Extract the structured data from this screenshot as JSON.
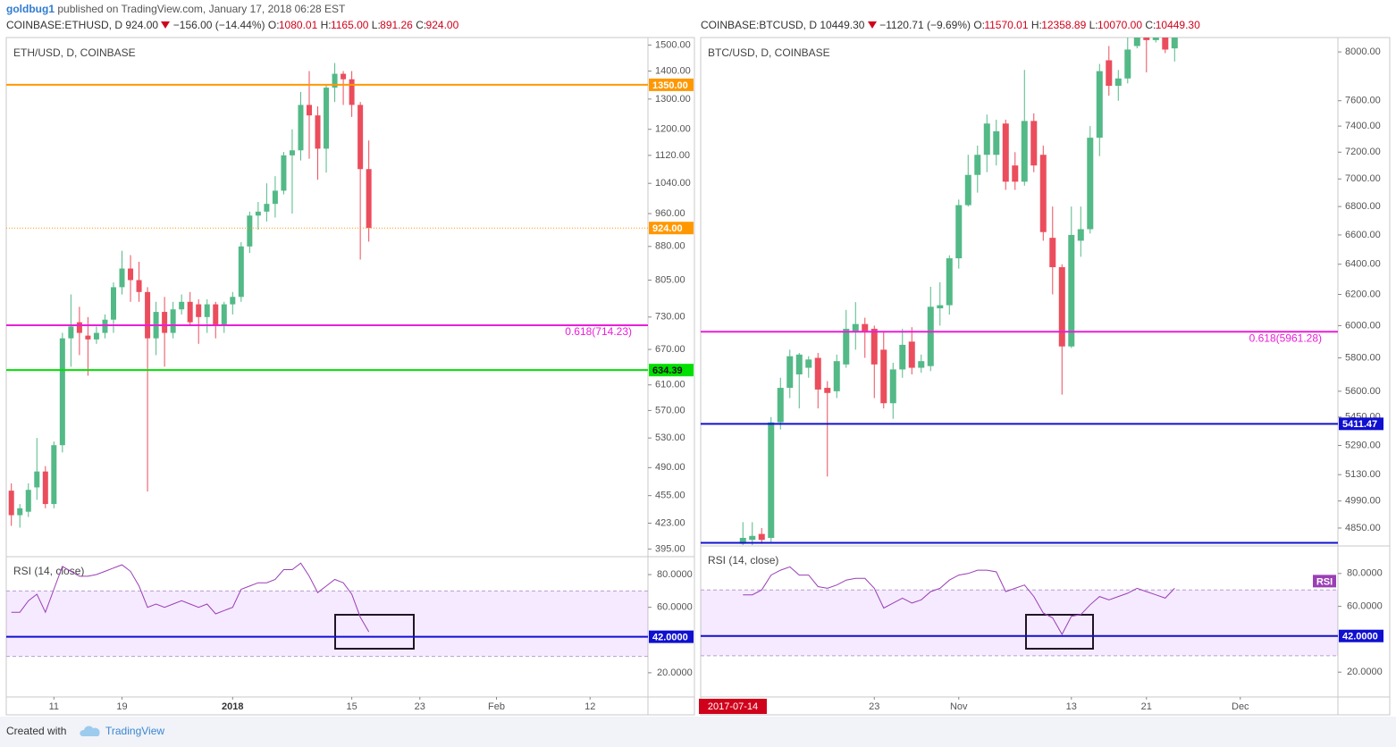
{
  "author": "goldbug1",
  "published": "published on TradingView.com, January 17, 2018 06:28 EST",
  "footer": {
    "created": "Created with",
    "brand": "TradingView"
  },
  "chart_data": [
    {
      "type": "candlestick",
      "header": {
        "symbol": "COINBASE:ETHUSD, D",
        "price": "924.00",
        "change": "−156.00 (−14.44%)",
        "ohlc": [
          {
            "label": "O:",
            "value": "1080.01"
          },
          {
            "label": "H:",
            "value": "1165.00"
          },
          {
            "label": "L:",
            "value": "891.26"
          },
          {
            "label": "C:",
            "value": "924.00"
          }
        ]
      },
      "title": "ETH/USD, D, COINBASE",
      "up_color": "#53b987",
      "down_color": "#eb4d5c",
      "log": true,
      "ylim": [
        388,
        1530
      ],
      "yticks": [
        {
          "value": 1500,
          "label": "1500.00"
        },
        {
          "value": 1400,
          "label": "1400.00"
        },
        {
          "value": 1300,
          "label": "1300.00"
        },
        {
          "value": 1200,
          "label": "1200.00"
        },
        {
          "value": 1120,
          "label": "1120.00"
        },
        {
          "value": 1040,
          "label": "1040.00"
        },
        {
          "value": 960,
          "label": "960.00"
        },
        {
          "value": 880,
          "label": "880.00"
        },
        {
          "value": 805,
          "label": "805.00"
        },
        {
          "value": 730,
          "label": "730.00"
        },
        {
          "value": 670,
          "label": "670.00"
        },
        {
          "value": 610,
          "label": "610.00"
        },
        {
          "value": 570,
          "label": "570.00"
        },
        {
          "value": 530,
          "label": "530.00"
        },
        {
          "value": 490,
          "label": "490.00"
        },
        {
          "value": 455,
          "label": "455.00"
        },
        {
          "value": 423,
          "label": "423.00"
        },
        {
          "value": 395,
          "label": "395.00"
        }
      ],
      "xlim": [
        -0.6,
        74.8
      ],
      "xticks": [
        {
          "value": 5,
          "label": "11"
        },
        {
          "value": 13,
          "label": "19"
        },
        {
          "value": 26,
          "label": "2018"
        },
        {
          "value": 40,
          "label": "15"
        },
        {
          "value": 48,
          "label": "23"
        },
        {
          "value": 57,
          "label": "Feb"
        },
        {
          "value": 68,
          "label": "12"
        }
      ],
      "open": [
        461,
        432,
        436,
        465,
        485,
        445,
        520,
        690,
        720,
        695,
        688,
        700,
        725,
        790,
        830,
        805,
        780,
        690,
        740,
        700,
        745,
        760,
        755,
        730,
        755,
        715,
        755,
        770,
        880,
        955,
        965,
        985,
        1020,
        1120,
        1135,
        1280,
        1245,
        1140,
        1340,
        1390,
        1370,
        1280,
        1080.01
      ],
      "high": [
        470,
        445,
        470,
        530,
        492,
        525,
        700,
        775,
        750,
        730,
        712,
        735,
        800,
        870,
        860,
        845,
        790,
        760,
        770,
        760,
        775,
        780,
        765,
        765,
        760,
        760,
        780,
        890,
        965,
        990,
        1040,
        1060,
        1130,
        1200,
        1325,
        1400,
        1275,
        1350,
        1430,
        1400,
        1400,
        1290,
        1165
      ],
      "low": [
        420,
        418,
        430,
        450,
        440,
        440,
        510,
        640,
        660,
        625,
        680,
        690,
        700,
        775,
        760,
        760,
        460,
        660,
        640,
        690,
        735,
        715,
        680,
        700,
        690,
        700,
        735,
        760,
        865,
        920,
        940,
        950,
        1010,
        960,
        1105,
        1110,
        1050,
        1070,
        1290,
        1280,
        1240,
        850,
        891.26
      ],
      "close": [
        432,
        440,
        462,
        485,
        445,
        520,
        690,
        712,
        700,
        688,
        700,
        725,
        790,
        830,
        805,
        780,
        690,
        740,
        700,
        745,
        760,
        720,
        730,
        755,
        715,
        755,
        770,
        880,
        955,
        965,
        985,
        1020,
        1120,
        1135,
        1280,
        1245,
        1140,
        1340,
        1390,
        1370,
        1280,
        1080,
        924
      ],
      "levels": [
        {
          "value": 1350,
          "color": "#ff9800",
          "style": "solid",
          "axis_label": "1350.00"
        },
        {
          "value": 924,
          "color": "#ff9800",
          "style": "dotted",
          "axis_label": "924.00"
        },
        {
          "value": 714.23,
          "color": "#e91ed8",
          "style": "solid",
          "fib_label": "0.618(714.23)"
        },
        {
          "value": 634.39,
          "color": "#00e000",
          "style": "solid",
          "axis_label": "634.39"
        }
      ],
      "rsi": {
        "title": "RSI (14, close)",
        "color": "#9a3fb5",
        "values": [
          57,
          57,
          64,
          68,
          57,
          71,
          85,
          82,
          79,
          79,
          80,
          82,
          84,
          86,
          82,
          73,
          60,
          62,
          60,
          62,
          64,
          62,
          60,
          62,
          56,
          58,
          60,
          71,
          73,
          75,
          75,
          77,
          83,
          83,
          87,
          79,
          69,
          73,
          77,
          75,
          68,
          54,
          45
        ],
        "ylim": [
          5.2,
          90.4
        ],
        "yticks": [
          {
            "value": 80,
            "label": "80.0000"
          },
          {
            "value": 60,
            "label": "60.0000"
          },
          {
            "value": 20,
            "label": "20.0000"
          }
        ],
        "band": [
          30,
          70
        ],
        "level": {
          "value": 42,
          "color": "#1010d0",
          "label": "42.0000"
        }
      }
    },
    {
      "type": "candlestick",
      "header": {
        "symbol": "COINBASE:BTCUSD, D",
        "price": "10449.30",
        "change": "−1120.71 (−9.69%)",
        "ohlc": [
          {
            "label": "O:",
            "value": "11570.01"
          },
          {
            "label": "H:",
            "value": "12358.89"
          },
          {
            "label": "L:",
            "value": "10070.00"
          },
          {
            "label": "C:",
            "value": "10449.30"
          }
        ]
      },
      "title": "BTC/USD, D, COINBASE",
      "up_color": "#53b987",
      "down_color": "#eb4d5c",
      "log": true,
      "ylim": [
        4764,
        8122
      ],
      "yticks": [
        {
          "value": 8000,
          "label": "8000.00"
        },
        {
          "value": 7600,
          "label": "7600.00"
        },
        {
          "value": 7400,
          "label": "7400.00"
        },
        {
          "value": 7200,
          "label": "7200.00"
        },
        {
          "value": 7000,
          "label": "7000.00"
        },
        {
          "value": 6800,
          "label": "6800.00"
        },
        {
          "value": 6600,
          "label": "6600.00"
        },
        {
          "value": 6400,
          "label": "6400.00"
        },
        {
          "value": 6200,
          "label": "6200.00"
        },
        {
          "value": 6000,
          "label": "6000.00"
        },
        {
          "value": 5800,
          "label": "5800.00"
        },
        {
          "value": 5600,
          "label": "5600.00"
        },
        {
          "value": 5450,
          "label": "5450.00"
        },
        {
          "value": 5290,
          "label": "5290.00"
        },
        {
          "value": 5130,
          "label": "5130.00"
        },
        {
          "value": 4990,
          "label": "4990.00"
        },
        {
          "value": 4850,
          "label": "4850.00"
        }
      ],
      "xlim": [
        -4.5,
        63.4
      ],
      "xticks": [
        {
          "value": 14,
          "label": "23"
        },
        {
          "value": 23,
          "label": "Nov"
        },
        {
          "value": 35,
          "label": "13"
        },
        {
          "value": 43,
          "label": "21"
        },
        {
          "value": 53,
          "label": "Dec"
        }
      ],
      "cursor_label": "2017-07-14",
      "open": [
        4770,
        4790,
        4820,
        4800,
        5420,
        5620,
        5700,
        5740,
        5800,
        5620,
        5600,
        5760,
        5960,
        6010,
        5980,
        5850,
        5530,
        5730,
        5900,
        5740,
        5750,
        6110,
        6130,
        6440,
        6810,
        7030,
        7180,
        7180,
        7420,
        7100,
        6980,
        7440,
        7180,
        6580,
        6380,
        5870,
        6560,
        6640,
        7310,
        7930,
        7720,
        7780,
        8050,
        8230,
        8100,
        8200,
        8030
      ],
      "high": [
        4880,
        4880,
        4850,
        5450,
        5680,
        5850,
        5830,
        5810,
        5830,
        5660,
        5820,
        6100,
        6150,
        6050,
        6000,
        5960,
        5770,
        5980,
        5990,
        5820,
        6250,
        6280,
        6460,
        6850,
        7180,
        7250,
        7490,
        7450,
        7450,
        7200,
        7850,
        7500,
        7250,
        6800,
        6400,
        6800,
        6800,
        7400,
        7900,
        8050,
        7850,
        8150,
        8300,
        8300,
        8300,
        8300,
        8250
      ],
      "low": [
        4760,
        4760,
        4770,
        4780,
        5380,
        5560,
        5500,
        5680,
        5500,
        5120,
        5560,
        5740,
        5850,
        5800,
        5560,
        5500,
        5440,
        5680,
        5700,
        5710,
        5720,
        6000,
        6070,
        6370,
        6800,
        6900,
        7050,
        7100,
        6920,
        6920,
        6950,
        7050,
        6560,
        6200,
        5580,
        5860,
        6450,
        6610,
        7170,
        7640,
        7600,
        7740,
        8030,
        7830,
        8080,
        7990,
        7920
      ],
      "close": [
        4800,
        4810,
        4790,
        5420,
        5620,
        5810,
        5820,
        5790,
        5610,
        5590,
        5780,
        5980,
        6010,
        5960,
        5760,
        5530,
        5730,
        5880,
        5740,
        5780,
        6120,
        6130,
        6440,
        6810,
        7030,
        7180,
        7420,
        7360,
        6980,
        6980,
        7440,
        7100,
        6620,
        6380,
        5870,
        6600,
        6640,
        7310,
        7840,
        7720,
        7780,
        8020,
        8150,
        8100,
        8200,
        8020,
        8150
      ],
      "levels": [
        {
          "value": 5961.28,
          "color": "#e91ed8",
          "style": "solid",
          "fib_label": "0.618(5961.28)"
        },
        {
          "value": 5411.47,
          "color": "#1010d0",
          "style": "solid",
          "axis_label": "5411.47"
        },
        {
          "value": 4775,
          "color": "#1010d0",
          "style": "solid"
        }
      ],
      "rsi": {
        "title": "RSI (14, close)",
        "color": "#9a3fb5",
        "tag": "RSI",
        "values": [
          67,
          67,
          70,
          79,
          82,
          84,
          79,
          79,
          72,
          71,
          73,
          76,
          77,
          77,
          71,
          59,
          62,
          65,
          62,
          64,
          69,
          71,
          76,
          79,
          80,
          82,
          82,
          81,
          69,
          71,
          73,
          66,
          56,
          53,
          43,
          54,
          55,
          61,
          66,
          64,
          66,
          68,
          71,
          69,
          67,
          65,
          71
        ],
        "ylim": [
          4.9,
          96.2
        ],
        "yticks": [
          {
            "value": 80,
            "label": "80.0000"
          },
          {
            "value": 60,
            "label": "60.0000"
          },
          {
            "value": 20,
            "label": "20.0000"
          }
        ],
        "band": [
          30,
          70
        ],
        "level": {
          "value": 42,
          "color": "#1010d0",
          "label": "42.0000"
        }
      }
    }
  ]
}
